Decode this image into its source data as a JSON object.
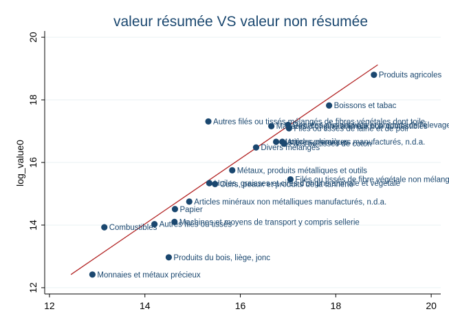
{
  "chart_data": {
    "type": "scatter",
    "title": "valeur résumée VS valeur non résumée",
    "xlabel": "",
    "ylabel": "log_value0",
    "xlim": [
      11.9,
      20.2
    ],
    "ylim": [
      11.8,
      20.2
    ],
    "xticks": [
      12,
      14,
      16,
      18,
      20
    ],
    "yticks": [
      12,
      14,
      16,
      18,
      20
    ],
    "grid": "y-major",
    "colors": {
      "background": "#ffffff",
      "title": "#1a476f",
      "marker": "#1a476f",
      "label": "#1a476f",
      "grid": "#eaf2f3",
      "fit_line": "#b22222"
    },
    "points": [
      {
        "x": 12.9,
        "y": 12.42,
        "label": "Monnaies et métaux précieux"
      },
      {
        "x": 13.15,
        "y": 13.93,
        "label": "Combustibles"
      },
      {
        "x": 14.2,
        "y": 14.03,
        "label": "Autres filés ou tissés"
      },
      {
        "x": 14.5,
        "y": 12.97,
        "label": "Produits du bois, liège, jonc"
      },
      {
        "x": 14.62,
        "y": 14.1,
        "label": "Machines et moyens de transport y compris sellerie"
      },
      {
        "x": 14.63,
        "y": 14.51,
        "label": "Papier"
      },
      {
        "x": 14.93,
        "y": 14.75,
        "label": "Articles minéraux non métalliques manufacturés, n.d.a."
      },
      {
        "x": 15.35,
        "y": 15.34,
        "label": "Huiles, graisses et cires d'origine animale et végétale"
      },
      {
        "x": 15.47,
        "y": 15.31,
        "label": "Cuirs, peaux et produits de la tannerie"
      },
      {
        "x": 15.83,
        "y": 15.75,
        "label": "Métaux, produits métalliques et outils"
      },
      {
        "x": 17.05,
        "y": 15.46,
        "label": "Filés ou tissés de fibre végétale non mélangée"
      },
      {
        "x": 16.33,
        "y": 16.48,
        "label": "Divers mélangés"
      },
      {
        "x": 16.75,
        "y": 16.66,
        "label": "Matières premières"
      },
      {
        "x": 16.88,
        "y": 16.66,
        "label": "Articles chimiques manufacturés, n.d.a."
      },
      {
        "x": 16.92,
        "y": 16.6,
        "label": "Filés ou tissés de coton"
      },
      {
        "x": 15.33,
        "y": 17.31,
        "label": "Autres filés ou tissés mélangés de fibres végétales dont toile"
      },
      {
        "x": 16.65,
        "y": 17.16,
        "label": "Matières d'origine animale non comestibles"
      },
      {
        "x": 17.0,
        "y": 17.2,
        "label": "Denrées alimentaires et produits de l'élevage"
      },
      {
        "x": 17.02,
        "y": 17.09,
        "label": "Filés ou tissés de laine et de poil"
      },
      {
        "x": 17.86,
        "y": 17.82,
        "label": "Boissons et tabac"
      },
      {
        "x": 18.8,
        "y": 18.8,
        "label": "Produits agricoles"
      }
    ],
    "fit_line": {
      "x": [
        12.45,
        18.88
      ],
      "y": [
        12.42,
        19.12
      ]
    }
  }
}
